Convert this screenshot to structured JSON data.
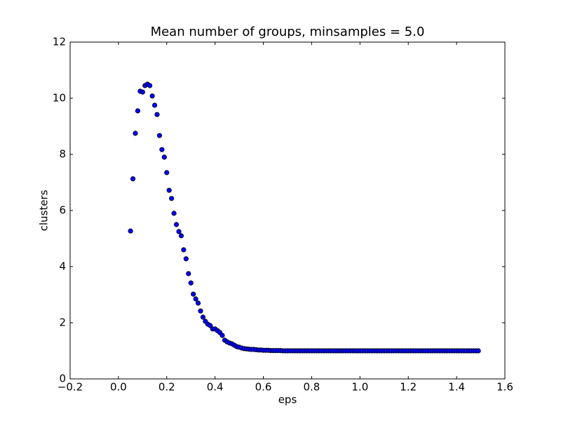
{
  "chart_data": {
    "type": "scatter",
    "title": "Mean number of groups, minsamples = 5.0",
    "xlabel": "eps",
    "ylabel": "clusters",
    "xlim": [
      -0.2,
      1.6
    ],
    "ylim": [
      0,
      12
    ],
    "xticks": [
      {
        "value": -0.2,
        "label": "−0.2"
      },
      {
        "value": 0,
        "label": "0.0"
      },
      0.2,
      0.4,
      0.6,
      0.8,
      {
        "value": 1,
        "label": "1.0"
      },
      1.2,
      1.4,
      1.6
    ],
    "yticks": [
      0,
      2,
      4,
      6,
      8,
      10,
      12
    ],
    "grid": false,
    "series": [
      {
        "color": "#0000ff",
        "x": [
          0.05,
          0.06,
          0.07,
          0.08,
          0.09,
          0.1,
          0.11,
          0.12,
          0.13,
          0.14,
          0.15,
          0.16,
          0.17,
          0.18,
          0.19,
          0.2,
          0.21,
          0.22,
          0.23,
          0.24,
          0.25,
          0.26,
          0.27,
          0.28,
          0.29,
          0.3,
          0.31,
          0.32,
          0.33,
          0.34,
          0.35,
          0.36,
          0.37,
          0.38,
          0.39,
          0.4,
          0.41,
          0.42,
          0.43,
          0.44,
          0.45,
          0.46,
          0.47,
          0.48,
          0.49,
          0.5,
          0.51,
          0.52,
          0.53,
          0.54,
          0.55,
          0.56,
          0.57,
          0.58,
          0.59,
          0.6,
          0.61,
          0.62,
          0.63,
          0.64,
          0.65,
          0.66,
          0.67,
          0.68,
          0.69,
          0.7,
          0.71,
          0.72,
          0.73,
          0.74,
          0.75,
          0.76,
          0.77,
          0.78,
          0.79,
          0.8,
          0.81,
          0.82,
          0.83,
          0.84,
          0.85,
          0.86,
          0.87,
          0.88,
          0.89,
          0.9,
          0.91,
          0.92,
          0.93,
          0.94,
          0.95,
          0.96,
          0.97,
          0.98,
          0.99,
          1.0,
          1.01,
          1.02,
          1.03,
          1.04,
          1.05,
          1.06,
          1.07,
          1.08,
          1.09,
          1.1,
          1.11,
          1.12,
          1.13,
          1.14,
          1.15,
          1.16,
          1.17,
          1.18,
          1.19,
          1.2,
          1.21,
          1.22,
          1.23,
          1.24,
          1.25,
          1.26,
          1.27,
          1.28,
          1.29,
          1.3,
          1.31,
          1.32,
          1.33,
          1.34,
          1.35,
          1.36,
          1.37,
          1.38,
          1.39,
          1.4,
          1.41,
          1.42,
          1.43,
          1.44,
          1.45,
          1.46,
          1.47,
          1.48,
          1.49
        ],
        "values": [
          5.27,
          7.13,
          8.75,
          9.55,
          10.25,
          10.22,
          10.45,
          10.5,
          10.45,
          10.08,
          9.75,
          9.42,
          8.67,
          8.17,
          7.9,
          7.35,
          6.72,
          6.43,
          5.9,
          5.5,
          5.25,
          5.1,
          4.6,
          4.28,
          3.75,
          3.42,
          3.02,
          2.85,
          2.7,
          2.42,
          2.2,
          2.05,
          1.95,
          1.9,
          1.78,
          1.78,
          1.72,
          1.65,
          1.55,
          1.38,
          1.32,
          1.28,
          1.25,
          1.2,
          1.15,
          1.13,
          1.1,
          1.08,
          1.07,
          1.06,
          1.05,
          1.05,
          1.04,
          1.03,
          1.03,
          1.02,
          1.02,
          1.02,
          1.01,
          1.01,
          1.01,
          1.01,
          1.01,
          1,
          1,
          1,
          1,
          1,
          1,
          1,
          1,
          1,
          1,
          1,
          1,
          1,
          1,
          1,
          1,
          1,
          1,
          1,
          1,
          1,
          1,
          1,
          1,
          1,
          1,
          1,
          1,
          1,
          1,
          1,
          1,
          1,
          1,
          1,
          1,
          1,
          1,
          1,
          1,
          1,
          1,
          1,
          1,
          1,
          1,
          1,
          1,
          1,
          1,
          1,
          1,
          1,
          1,
          1,
          1,
          1,
          1,
          1,
          1,
          1,
          1,
          1,
          1,
          1,
          1,
          1,
          1,
          1,
          1,
          1,
          1,
          1,
          1,
          1,
          1,
          1,
          1,
          1,
          1,
          1,
          1
        ]
      }
    ]
  }
}
